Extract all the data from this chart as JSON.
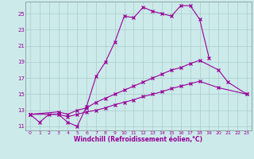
{
  "xlabel": "Windchill (Refroidissement éolien,°C)",
  "bg_color": "#cceaea",
  "line_color": "#990099",
  "grid_color": "#aacccc",
  "xlim": [
    -0.5,
    23.5
  ],
  "ylim": [
    10.5,
    26.5
  ],
  "xticks": [
    0,
    1,
    2,
    3,
    4,
    5,
    6,
    7,
    8,
    9,
    10,
    11,
    12,
    13,
    14,
    15,
    16,
    17,
    18,
    19,
    20,
    21,
    22,
    23
  ],
  "yticks": [
    11,
    13,
    15,
    17,
    19,
    21,
    23,
    25
  ],
  "line1_x": [
    0,
    1,
    2,
    3,
    4,
    5,
    6,
    7,
    8,
    9,
    10,
    11,
    12,
    13,
    14,
    15,
    16,
    17,
    18,
    19
  ],
  "line1_y": [
    12.5,
    11.5,
    12.5,
    12.5,
    11.5,
    11.0,
    13.5,
    17.2,
    19.0,
    21.5,
    24.7,
    24.5,
    25.8,
    25.3,
    25.0,
    24.7,
    26.0,
    26.0,
    24.3,
    19.5
  ],
  "line2_x": [
    0,
    3,
    4,
    5,
    6,
    7,
    8,
    9,
    10,
    11,
    12,
    13,
    14,
    15,
    16,
    17,
    18,
    20,
    21,
    23
  ],
  "line2_y": [
    12.5,
    12.8,
    12.5,
    13.0,
    13.3,
    14.0,
    14.5,
    15.0,
    15.5,
    16.0,
    16.5,
    17.0,
    17.5,
    18.0,
    18.3,
    18.8,
    19.2,
    18.0,
    16.5,
    15.0
  ],
  "line3_x": [
    0,
    3,
    4,
    5,
    6,
    7,
    8,
    9,
    10,
    11,
    12,
    13,
    14,
    15,
    16,
    17,
    18,
    20,
    23
  ],
  "line3_y": [
    12.5,
    12.5,
    12.2,
    12.5,
    12.8,
    13.0,
    13.3,
    13.7,
    14.0,
    14.3,
    14.7,
    15.0,
    15.3,
    15.7,
    16.0,
    16.3,
    16.6,
    15.8,
    15.0
  ]
}
